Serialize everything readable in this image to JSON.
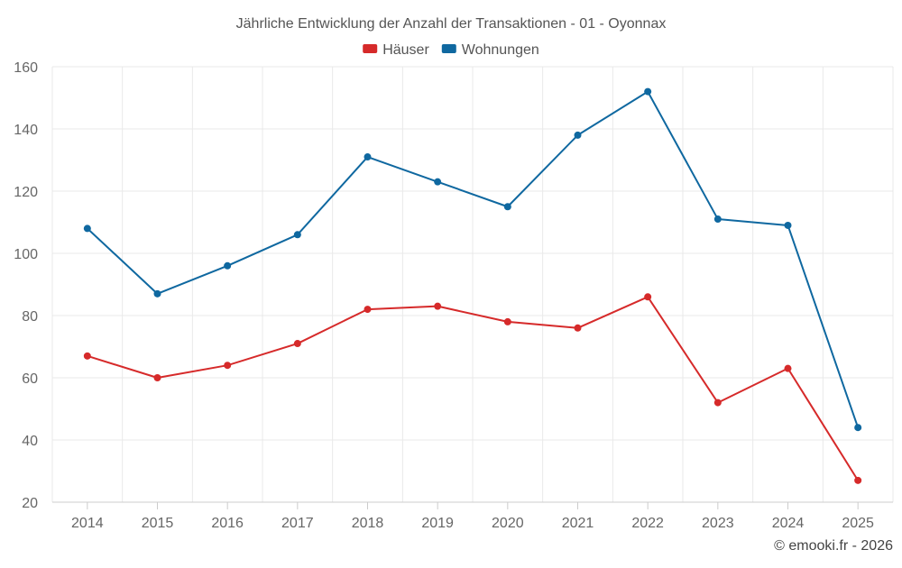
{
  "chart_data": {
    "type": "line",
    "title": "Jährliche Entwicklung der Anzahl der Transaktionen - 01 - Oyonnax",
    "xlabel": "",
    "ylabel": "",
    "categories": [
      "2014",
      "2015",
      "2016",
      "2017",
      "2018",
      "2019",
      "2020",
      "2021",
      "2022",
      "2023",
      "2024",
      "2025"
    ],
    "series": [
      {
        "name": "Häuser",
        "color": "#d62a2a",
        "values": [
          67,
          60,
          64,
          71,
          82,
          83,
          78,
          76,
          86,
          52,
          63,
          27
        ]
      },
      {
        "name": "Wohnungen",
        "color": "#0f68a0",
        "values": [
          108,
          87,
          96,
          106,
          131,
          123,
          115,
          138,
          152,
          111,
          109,
          44
        ]
      }
    ],
    "ylim": [
      20,
      160
    ],
    "yticks": [
      "20",
      "40",
      "60",
      "80",
      "100",
      "120",
      "140",
      "160"
    ],
    "grid": true,
    "legend": "top-center"
  },
  "credit": "© emooki.fr - 2026"
}
